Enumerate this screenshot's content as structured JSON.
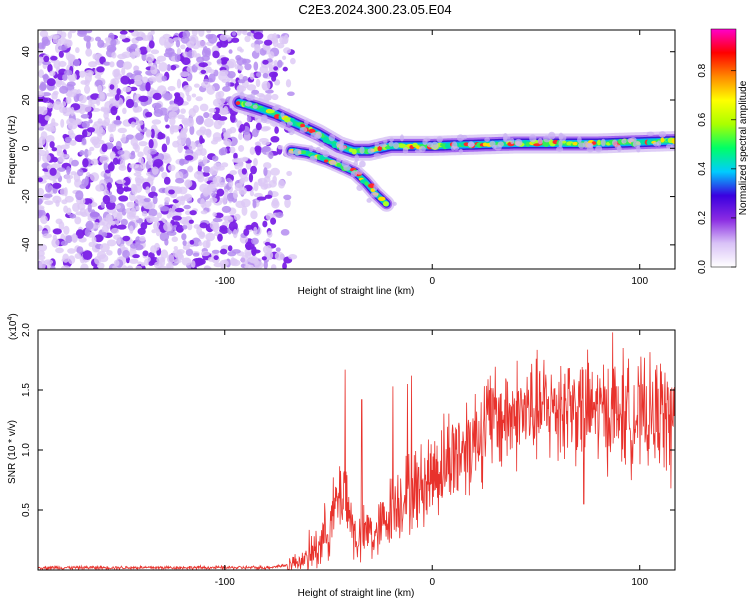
{
  "title": "C2E3.2024.300.23.05.E04",
  "chart_data": [
    {
      "type": "heatmap",
      "title": "C2E3.2024.300.23.05.E04",
      "xlabel": "Height of straight line (km)",
      "ylabel": "Frequency (Hz)",
      "xlim": [
        -190,
        117
      ],
      "ylim": [
        -50,
        49
      ],
      "xticks": [
        -100,
        0,
        100
      ],
      "xtick_labels": [
        "-100",
        "0",
        "100"
      ],
      "yticks": [
        -40,
        -20,
        0,
        20,
        40
      ],
      "ytick_labels": [
        "-40",
        "-20",
        "0",
        "20",
        "40"
      ],
      "noise_region_x": [
        -190,
        -75
      ],
      "ridges": [
        {
          "points": [
            [
              -93,
              19
            ],
            [
              -85,
              17
            ],
            [
              -75,
              14
            ],
            [
              -65,
              10
            ],
            [
              -55,
              6
            ],
            [
              -45,
              1
            ],
            [
              -38,
              -1
            ],
            [
              -30,
              -1
            ],
            [
              -20,
              1
            ],
            [
              0,
              1
            ],
            [
              40,
              2
            ],
            [
              80,
              2
            ],
            [
              117,
              3
            ]
          ]
        },
        {
          "points": [
            [
              -68,
              -1
            ],
            [
              -60,
              -2
            ],
            [
              -50,
              -5
            ],
            [
              -42,
              -8
            ],
            [
              -37,
              -10
            ],
            [
              -32,
              -14
            ],
            [
              -27,
              -19
            ],
            [
              -22,
              -23
            ]
          ]
        }
      ],
      "colorbar": {
        "label": "Normalized spectral amplitude",
        "range": [
          0.0,
          0.97
        ],
        "ticks": [
          0.0,
          0.2,
          0.4,
          0.6,
          0.8
        ],
        "tick_labels": [
          "0.0",
          "0.2",
          "0.4",
          "0.6",
          "0.8"
        ],
        "colors": [
          "#ffffff",
          "#d9c2f7",
          "#8a2be2",
          "#3a00e0",
          "#00ccff",
          "#00ff66",
          "#aaff00",
          "#ffff00",
          "#ff8800",
          "#ff0000",
          "#ff00cc"
        ]
      }
    },
    {
      "type": "line",
      "xlabel": "Height of straight line (km)",
      "ylabel": "SNR (10 * v/v)",
      "y_multiplier_label": "(x10",
      "y_multiplier_exp": "4",
      "xlim": [
        -190,
        117
      ],
      "ylim": [
        0,
        2.0
      ],
      "xticks": [
        -100,
        0,
        100
      ],
      "xtick_labels": [
        "-100",
        "0",
        "100"
      ],
      "yticks": [
        0.5,
        1.0,
        1.5,
        2.0
      ],
      "ytick_labels": [
        "0.5",
        "1.0",
        "1.5",
        "2.0"
      ],
      "series": [
        {
          "color": "#e8322c",
          "x": [
            -190,
            -150,
            -100,
            -80,
            -70,
            -60,
            -55,
            -50,
            -45,
            -42,
            -40,
            -38,
            -35,
            -32,
            -30,
            -28,
            -25,
            -20,
            -15,
            -10,
            -5,
            0,
            10,
            20,
            25,
            30,
            40,
            50,
            60,
            70,
            80,
            90,
            100,
            110,
            117
          ],
          "y": [
            0.02,
            0.02,
            0.02,
            0.02,
            0.04,
            0.1,
            0.2,
            0.35,
            0.6,
            0.7,
            0.5,
            0.3,
            0.25,
            0.3,
            0.35,
            0.25,
            0.35,
            0.5,
            0.6,
            0.65,
            0.7,
            0.8,
            0.95,
            1.1,
            1.2,
            1.25,
            1.3,
            1.33,
            1.35,
            1.35,
            1.33,
            1.3,
            1.28,
            1.28,
            1.25
          ],
          "peaks": [
            [
              -42,
              1.67
            ],
            [
              -34,
              1.42
            ],
            [
              -19,
              1.53
            ],
            [
              -12,
              1.55
            ],
            [
              -10,
              1.62
            ],
            [
              28,
              1.62
            ],
            [
              62,
              1.7
            ],
            [
              66,
              1.68
            ],
            [
              73,
              0.55
            ],
            [
              87,
              1.98
            ],
            [
              92,
              1.85
            ],
            [
              110,
              1.72
            ],
            [
              115,
              0.68
            ]
          ]
        }
      ]
    }
  ]
}
